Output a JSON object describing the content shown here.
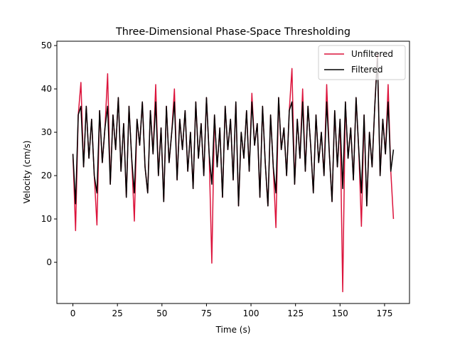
{
  "chart_data": {
    "type": "line",
    "title": "Three-Dimensional Phase-Space Thresholding",
    "xlabel": "Time (s)",
    "ylabel": "Velocity (cm/s)",
    "x": [
      0,
      1.5,
      3,
      4.5,
      6,
      7.5,
      9,
      10.5,
      12,
      13.5,
      15,
      16.5,
      18,
      19.5,
      21,
      22.5,
      24,
      25.5,
      27,
      28.5,
      30,
      31.5,
      33,
      34.5,
      36,
      37.5,
      39,
      40.5,
      42,
      43.5,
      45,
      46.5,
      48,
      49.5,
      51,
      52.5,
      54,
      55.5,
      57,
      58.5,
      60,
      61.5,
      63,
      64.5,
      66,
      67.5,
      69,
      70.5,
      72,
      73.5,
      75,
      76.5,
      78,
      79.5,
      81,
      82.5,
      84,
      85.5,
      87,
      88.5,
      90,
      91.5,
      93,
      94.5,
      96,
      97.5,
      99,
      100.5,
      102,
      103.5,
      105,
      106.5,
      108,
      109.5,
      111,
      112.5,
      114,
      115.5,
      117,
      118.5,
      120,
      121.5,
      123,
      124.5,
      126,
      127.5,
      129,
      130.5,
      132,
      133.5,
      135,
      136.5,
      138,
      139.5,
      141,
      142.5,
      144,
      145.5,
      147,
      148.5,
      150,
      151.5,
      153,
      154.5,
      156,
      157.5,
      159,
      160.5,
      162,
      163.5,
      165,
      166.5,
      168,
      169.5,
      171,
      172.5,
      174,
      175.5,
      177,
      178.5,
      180
    ],
    "series": [
      {
        "name": "Unfiltered",
        "color": "#dc143c",
        "values": [
          25,
          7.3,
          34,
          41.5,
          22,
          36,
          24,
          33,
          20,
          8.6,
          35,
          23,
          31,
          43.5,
          18,
          34,
          26,
          38,
          21,
          32,
          15,
          36,
          24,
          9.5,
          33,
          27,
          37,
          22,
          16,
          35,
          25,
          41,
          20,
          31,
          14,
          36,
          23,
          30,
          40,
          19,
          33,
          26,
          35,
          21,
          30,
          17,
          37,
          24,
          32,
          20,
          38,
          25,
          -0.2,
          34,
          22,
          31,
          15,
          36,
          26,
          33,
          19,
          37,
          13,
          30,
          24,
          35,
          21,
          39,
          27,
          32,
          15,
          36,
          23,
          13,
          34,
          22,
          8,
          38,
          26,
          31,
          20,
          35,
          44.7,
          18,
          33,
          24,
          40,
          21,
          36,
          27,
          16,
          34,
          23,
          30,
          20,
          41,
          25,
          14,
          35,
          22,
          33,
          -6.8,
          37,
          24,
          31,
          19,
          38,
          26,
          8.3,
          34,
          13,
          30,
          22,
          36,
          48,
          20,
          33,
          25,
          41,
          21,
          10
        ]
      },
      {
        "name": "Filtered",
        "color": "#000000",
        "values": [
          25,
          13.5,
          34,
          36,
          22,
          36,
          24,
          33,
          20,
          16,
          35,
          23,
          31,
          36,
          18,
          34,
          26,
          38,
          21,
          32,
          15,
          36,
          24,
          16,
          33,
          27,
          37,
          22,
          16,
          35,
          25,
          37,
          20,
          31,
          14,
          36,
          23,
          30,
          37,
          19,
          33,
          26,
          35,
          21,
          30,
          17,
          37,
          24,
          32,
          20,
          38,
          25,
          18,
          34,
          22,
          31,
          15,
          36,
          26,
          33,
          19,
          37,
          13,
          30,
          24,
          35,
          21,
          37,
          27,
          32,
          15,
          36,
          23,
          13,
          34,
          22,
          16,
          38,
          26,
          31,
          20,
          35,
          37,
          18,
          33,
          24,
          37,
          21,
          36,
          27,
          16,
          34,
          23,
          30,
          20,
          37,
          25,
          14,
          35,
          22,
          33,
          17,
          37,
          24,
          31,
          19,
          38,
          26,
          16,
          34,
          13,
          30,
          22,
          36,
          47,
          20,
          33,
          25,
          37,
          21,
          26
        ]
      }
    ],
    "xlim": [
      -9,
      189
    ],
    "ylim": [
      -9.5,
      51
    ],
    "xticks": [
      0,
      25,
      50,
      75,
      100,
      125,
      150,
      175
    ],
    "yticks": [
      0,
      10,
      20,
      30,
      40,
      50
    ],
    "legend": "upper right"
  }
}
